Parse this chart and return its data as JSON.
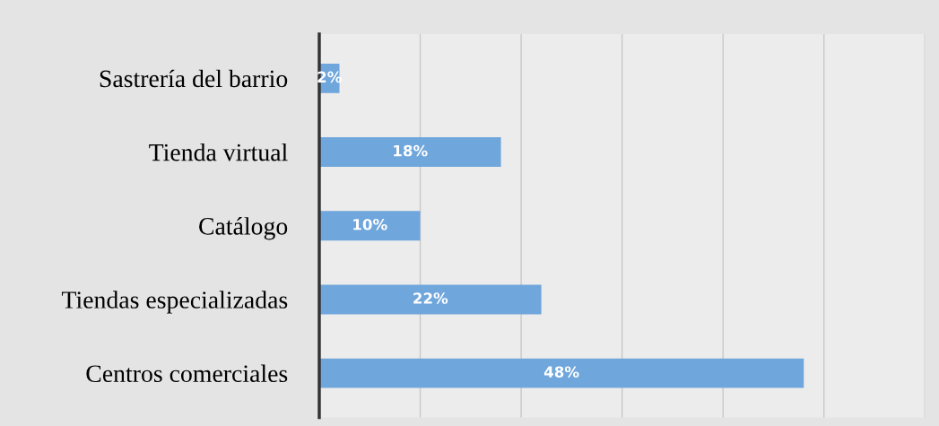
{
  "chart_data": {
    "type": "bar",
    "orientation": "horizontal",
    "categories": [
      "Sastrería del barrio",
      "Tienda virtual",
      "Catálogo",
      "Tiendas especializadas",
      "Centros comerciales"
    ],
    "values": [
      2,
      18,
      10,
      22,
      48
    ],
    "value_labels": [
      "2%",
      "18%",
      "10%",
      "22%",
      "48%"
    ],
    "color": "#6fa6dc",
    "xlim": [
      0,
      60
    ],
    "xticks": [
      {
        "value": 0,
        "label": null
      },
      {
        "value": 10,
        "label": null
      },
      {
        "value": 20,
        "label": null
      },
      {
        "value": 30,
        "label": null
      },
      {
        "value": 40,
        "label": null
      },
      {
        "value": 50,
        "label": null
      },
      {
        "value": 60,
        "label": null
      }
    ],
    "tick_labels": "y",
    "grid": "x"
  }
}
